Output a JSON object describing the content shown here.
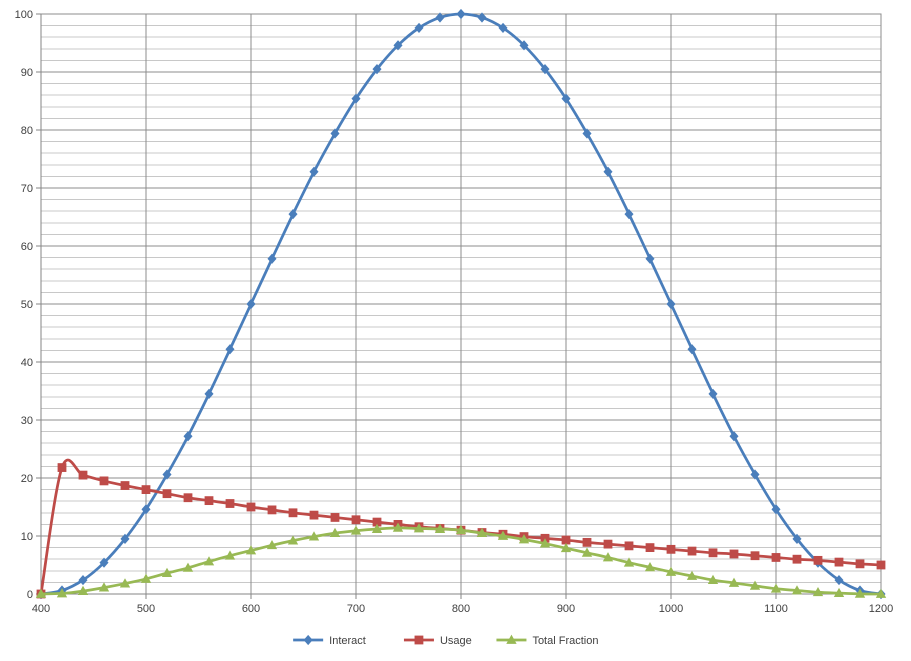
{
  "chart_data": {
    "type": "line",
    "title": "",
    "xlabel": "",
    "ylabel": "",
    "xlim": [
      400,
      1200
    ],
    "ylim": [
      0,
      100
    ],
    "x_ticks": [
      400,
      500,
      600,
      700,
      800,
      900,
      1000,
      1100,
      1200
    ],
    "y_ticks": [
      0,
      10,
      20,
      30,
      40,
      50,
      60,
      70,
      80,
      90,
      100
    ],
    "grid": true,
    "legend_position": "bottom",
    "x": [
      400,
      420,
      440,
      460,
      480,
      500,
      520,
      540,
      560,
      580,
      600,
      620,
      640,
      660,
      680,
      700,
      720,
      740,
      760,
      780,
      800,
      820,
      840,
      860,
      880,
      900,
      920,
      940,
      960,
      980,
      1000,
      1020,
      1040,
      1060,
      1080,
      1100,
      1120,
      1140,
      1160,
      1180,
      1200
    ],
    "series": [
      {
        "name": "Interact",
        "color": "#4a7ebb",
        "marker": "diamond",
        "values": [
          0,
          0.6,
          2.4,
          5.4,
          9.5,
          14.6,
          20.6,
          27.2,
          34.5,
          42.2,
          50,
          57.8,
          65.5,
          72.8,
          79.4,
          85.4,
          90.5,
          94.6,
          97.6,
          99.4,
          100,
          99.4,
          97.6,
          94.6,
          90.5,
          85.4,
          79.4,
          72.8,
          65.5,
          57.8,
          50,
          42.2,
          34.5,
          27.2,
          20.6,
          14.6,
          9.5,
          5.4,
          2.4,
          0.6,
          0
        ]
      },
      {
        "name": "Usage",
        "color": "#be4b48",
        "marker": "square",
        "values": [
          0,
          21.8,
          20.5,
          19.5,
          18.7,
          18.0,
          17.3,
          16.6,
          16.1,
          15.6,
          15.0,
          14.5,
          14.0,
          13.6,
          13.2,
          12.8,
          12.4,
          12.0,
          11.6,
          11.3,
          11.0,
          10.6,
          10.3,
          9.9,
          9.6,
          9.3,
          8.9,
          8.6,
          8.3,
          8.0,
          7.7,
          7.4,
          7.1,
          6.9,
          6.6,
          6.3,
          6.0,
          5.8,
          5.5,
          5.2,
          5.0
        ]
      },
      {
        "name": "Total Fraction",
        "color": "#98b954",
        "marker": "triangle",
        "values": [
          0,
          0.1,
          0.5,
          1.1,
          1.8,
          2.6,
          3.6,
          4.5,
          5.6,
          6.6,
          7.5,
          8.4,
          9.2,
          9.9,
          10.5,
          10.9,
          11.2,
          11.4,
          11.3,
          11.2,
          11.0,
          10.5,
          10.0,
          9.4,
          8.7,
          7.9,
          7.1,
          6.3,
          5.4,
          4.6,
          3.8,
          3.1,
          2.4,
          1.9,
          1.4,
          0.9,
          0.6,
          0.3,
          0.15,
          0.03,
          0
        ]
      }
    ]
  }
}
